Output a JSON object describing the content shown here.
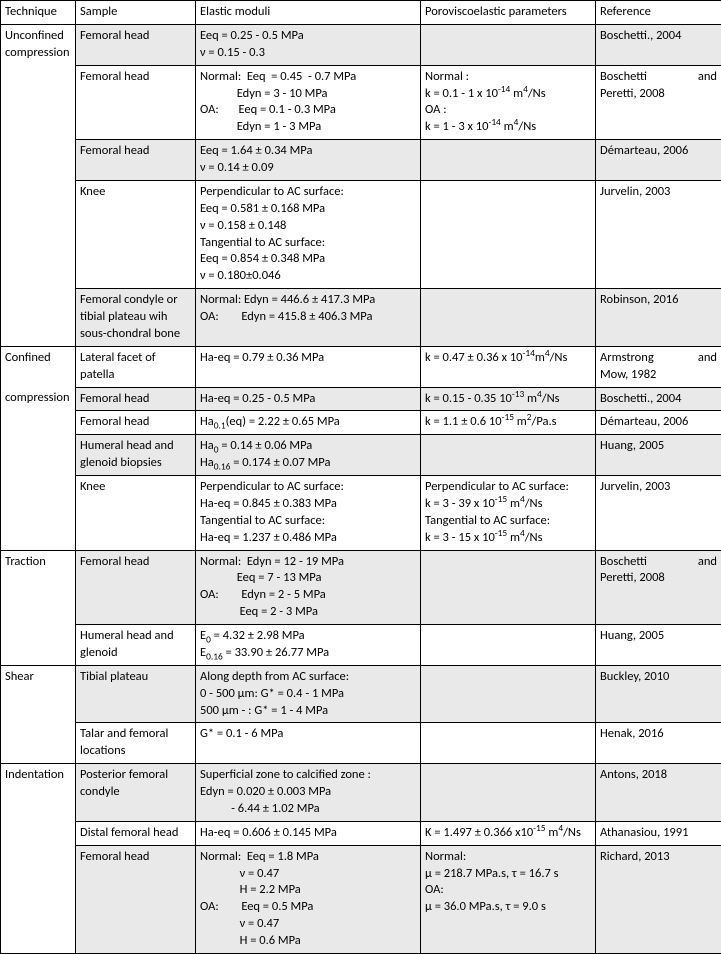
{
  "headers": {
    "technique": "Technique",
    "sample": "Sample",
    "elastic": "Elastic moduli",
    "poro": "Poroviscoelastic parameters",
    "ref": "Reference"
  },
  "cells": {
    "technique_unconfined": "Unconfined compression",
    "technique_confined_1": "Confined",
    "technique_confined_2": "compression",
    "technique_traction": "Traction",
    "technique_shear": "Shear",
    "technique_indentation": "Indentation",
    "uc1_sample": "Femoral head",
    "uc1_elastic": "Eeq = 0.25 - 0.5 MPa\nν = 0.15 - 0.3",
    "uc1_poro": "",
    "uc1_ref": "Boschetti., 2004",
    "uc2_sample": "Femoral head",
    "uc2_elastic": "Normal:  Eeq  = 0.45  - 0.7 MPa\n             Edyn = 3 - 10 MPa\nOA:       Eeq = 0.1 - 0.3 MPa\n             Edyn = 1 - 3 MPa",
    "uc2_poro_html": "Normal :<br>k = 0.1 - 1 x 10<sup>-14</sup> m<sup>4</sup>/Ns<br>OA :<br>k = 1 - 3 x 10<sup>-14</sup> m<sup>4</sup>/Ns",
    "uc2_ref_html": "<div class='just'>Boschetti and</div>Peretti, 2008",
    "uc3_sample": "Femoral head",
    "uc3_elastic": "Eeq = 1.64 ± 0.34 MPa\nν = 0.14 ± 0.09",
    "uc3_poro": "",
    "uc3_ref": "Démarteau, 2006",
    "uc4_sample": "Knee",
    "uc4_elastic": "Perpendicular to AC surface:\nEeq = 0.581 ± 0.168 MPa\nν = 0.158 ± 0.148\nTangential to AC surface:\nEeq = 0.854 ± 0.348 MPa\nν = 0.180±0.046",
    "uc4_poro": "",
    "uc4_ref": "Jurvelin, 2003",
    "uc5_sample": "Femoral condyle or tibial plateau wih sous-chondral bone",
    "uc5_elastic": "Normal: Edyn = 446.6 ± 417.3 MPa\nOA:        Edyn = 415.8 ± 406.3 MPa",
    "uc5_poro": "",
    "uc5_ref": "Robinson, 2016",
    "cc1_sample": "Lateral facet of patella",
    "cc1_elastic": "Ha-eq = 0.79 ± 0.36 MPa",
    "cc1_poro_html": "k = 0.47 ± 0.36 x 10<sup>-14</sup>m<sup>4</sup>/Ns",
    "cc1_ref_html": "<div class='just'>Armstrong and</div>Mow, 1982",
    "cc2_sample": "Femoral head",
    "cc2_elastic": "Ha-eq = 0.25 - 0.5 MPa",
    "cc2_poro_html": "k = 0.15 - 0.35 10<sup>-13</sup> m<sup>4</sup>/Ns",
    "cc2_ref": "Boschetti., 2004",
    "cc3_sample": "Femoral head",
    "cc3_elastic_html": "Ha<sub>0.1</sub>(eq) = 2.22 ± 0.65 MPa",
    "cc3_poro_html": "k = 1.1 ± 0.6 10<sup>-15</sup> m<sup>2</sup>/Pa.s",
    "cc3_ref": "Démarteau, 2006",
    "cc4_sample": "Humeral head and glenoid biopsies",
    "cc4_elastic_html": "Ha<sub>0</sub> = 0.14 ± 0.06 MPa<br>Ha<sub>0.16</sub> = 0.174 ± 0.07 MPa",
    "cc4_poro": "",
    "cc4_ref": "Huang, 2005",
    "cc5_sample": "Knee",
    "cc5_elastic": "Perpendicular to AC surface:\nHa-eq = 0.845 ± 0.383 MPa\nTangential to AC surface:\nHa-eq = 1.237 ± 0.486 MPa",
    "cc5_poro_html": "Perpendicular to AC surface:<br>k = 3 - 39 x 10<sup>-15</sup> m<sup>4</sup>/Ns<br>Tangential to AC surface:<br>k = 3 - 15 x 10<sup>-15</sup> m<sup>4</sup>/Ns",
    "cc5_ref": "Jurvelin, 2003",
    "tr1_sample": "Femoral head",
    "tr1_elastic": "Normal:  Edyn = 12 - 19 MPa\n             Eeq = 7 - 13 MPa\nOA:        Edyn = 2 - 5 MPa\n              Eeq = 2 - 3 MPa",
    "tr1_poro": "",
    "tr1_ref_html": "<div class='just'>Boschetti and</div>Peretti, 2008",
    "tr2_sample": "Humeral head and glenoid",
    "tr2_elastic_html": "E<sub>0</sub> = 4.32 ± 2.98 MPa<br>E<sub>0.16</sub>  = 33.90 ± 26.77 MPa",
    "tr2_poro": "",
    "tr2_ref": "Huang, 2005",
    "sh1_sample": "Tibial plateau",
    "sh1_elastic": "Along depth from AC surface:\n0 - 500 µm: G* = 0.4 - 1 MPa\n500 µm - : G* = 1 - 4 MPa",
    "sh1_poro": "",
    "sh1_ref": "Buckley, 2010",
    "sh2_sample": "Talar and femoral locations",
    "sh2_elastic": "G* = 0.1 - 6 MPa",
    "sh2_poro": "",
    "sh2_ref": "Henak, 2016",
    "in1_sample": "Posterior femoral condyle",
    "in1_elastic": "Superficial zone to calcified zone :\nEdyn = 0.020 ± 0.003 MPa\n           - 6.44 ± 1.02 MPa",
    "in1_poro": "",
    "in1_ref": "Antons, 2018",
    "in2_sample": "Distal femoral head",
    "in2_elastic": "Ha-eq = 0.606 ± 0.145 MPa",
    "in2_poro_html": "K = 1.497 ± 0.366 x10<sup>-15</sup> m<sup>4</sup>/Ns",
    "in2_ref": "Athanasiou, 1991",
    "in3_sample": "Femoral head",
    "in3_elastic": "Normal:  Eeq = 1.8 MPa\n              ν = 0.47\n              H = 2.2 MPa\nOA:        Eeq = 0.5 MPa\n              ν = 0.47\n              H = 0.6 MPa",
    "in3_poro": "Normal:\nµ = 218.7 MPa.s, τ = 16.7 s\nOA:\nµ = 36.0 MPa.s, τ = 9.0 s",
    "in3_ref": "Richard, 2013"
  }
}
